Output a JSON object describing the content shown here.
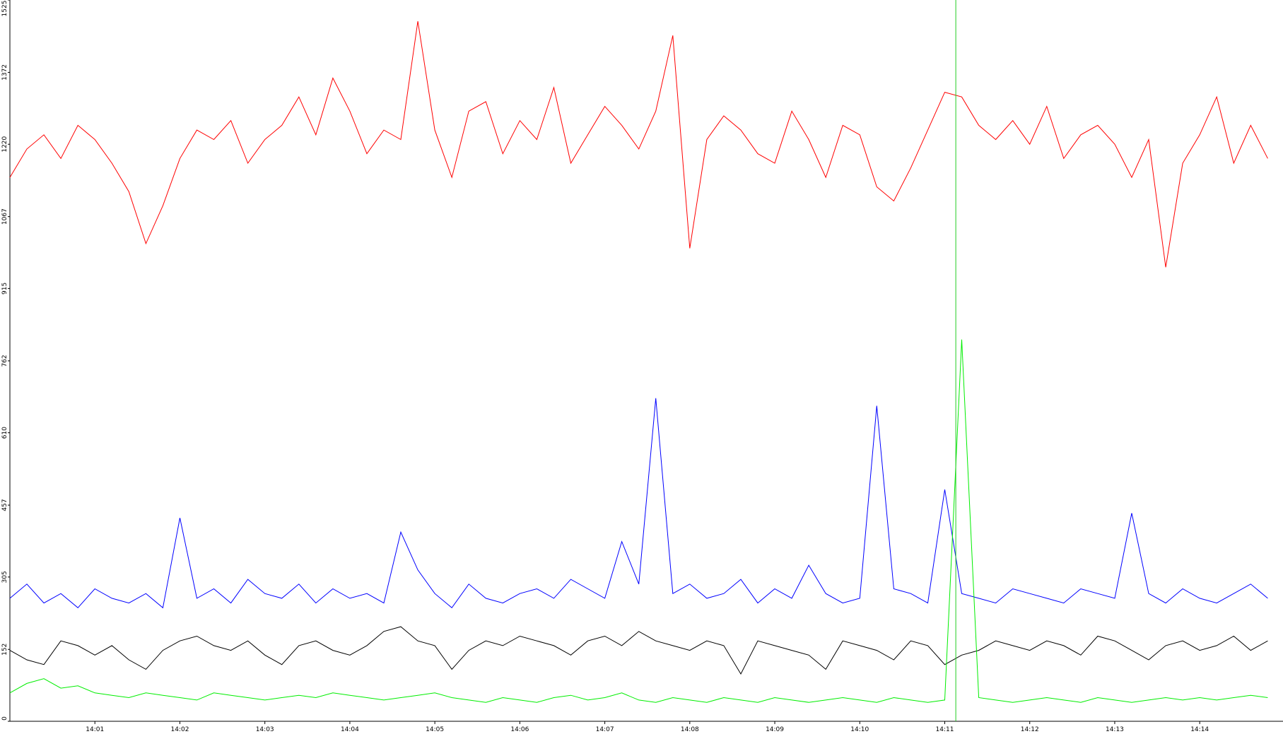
{
  "chart_data": {
    "type": "line",
    "x": [
      0,
      0.2,
      0.4,
      0.6,
      0.8,
      1,
      1.2,
      1.4,
      1.6,
      1.8,
      2,
      2.2,
      2.4,
      2.6,
      2.8,
      3,
      3.2,
      3.4,
      3.6,
      3.8,
      4,
      4.2,
      4.4,
      4.6,
      4.8,
      5,
      5.2,
      5.4,
      5.6,
      5.8,
      6,
      6.2,
      6.4,
      6.6,
      6.8,
      7,
      7.2,
      7.4,
      7.6,
      7.8,
      8,
      8.2,
      8.4,
      8.6,
      8.8,
      9,
      9.2,
      9.4,
      9.6,
      9.8,
      10,
      10.2,
      10.4,
      10.6,
      10.8,
      11,
      11.2,
      11.4,
      11.6,
      11.8,
      12,
      12.2,
      12.4,
      12.6,
      12.8,
      13,
      13.2,
      13.4,
      13.6,
      13.8,
      14,
      14.2,
      14.4,
      14.6,
      14.8
    ],
    "xlim": [
      0,
      14.98
    ],
    "xticks": [
      {
        "value": 1,
        "label": "14:01"
      },
      {
        "value": 2,
        "label": "14:02"
      },
      {
        "value": 3,
        "label": "14:03"
      },
      {
        "value": 4,
        "label": "14:04"
      },
      {
        "value": 5,
        "label": "14:05"
      },
      {
        "value": 6,
        "label": "14:06"
      },
      {
        "value": 7,
        "label": "14:07"
      },
      {
        "value": 8,
        "label": "14:08"
      },
      {
        "value": 9,
        "label": "14:09"
      },
      {
        "value": 10,
        "label": "14:10"
      },
      {
        "value": 11,
        "label": "14:11"
      },
      {
        "value": 12,
        "label": "14:12"
      },
      {
        "value": 13,
        "label": "14:13"
      },
      {
        "value": 14,
        "label": "14:14"
      }
    ],
    "ylim": [
      0,
      1525
    ],
    "yticks": [
      0,
      152,
      305,
      457,
      610,
      762,
      915,
      1067,
      1220,
      1372,
      1525
    ],
    "marker_x": 11.13,
    "marker_color": "#22cc22",
    "series": [
      {
        "color": "#ff0000",
        "values": [
          1150,
          1210,
          1240,
          1190,
          1260,
          1230,
          1180,
          1120,
          1010,
          1090,
          1190,
          1250,
          1230,
          1270,
          1180,
          1230,
          1260,
          1320,
          1240,
          1360,
          1290,
          1200,
          1250,
          1230,
          1480,
          1250,
          1150,
          1290,
          1310,
          1200,
          1270,
          1230,
          1340,
          1180,
          1240,
          1300,
          1260,
          1210,
          1290,
          1450,
          1000,
          1230,
          1280,
          1250,
          1200,
          1180,
          1290,
          1230,
          1150,
          1260,
          1240,
          1130,
          1100,
          1170,
          1250,
          1330,
          1320,
          1260,
          1230,
          1270,
          1220,
          1300,
          1190,
          1240,
          1260,
          1220,
          1150,
          1230,
          960,
          1180,
          1240,
          1320,
          1180,
          1260,
          1190
        ]
      },
      {
        "color": "#0000ff",
        "values": [
          260,
          290,
          250,
          270,
          240,
          280,
          260,
          250,
          270,
          240,
          430,
          260,
          280,
          250,
          300,
          270,
          260,
          290,
          250,
          280,
          260,
          270,
          250,
          400,
          320,
          270,
          240,
          290,
          260,
          250,
          270,
          280,
          260,
          300,
          280,
          260,
          380,
          290,
          683,
          270,
          290,
          260,
          270,
          300,
          250,
          280,
          260,
          330,
          270,
          250,
          260,
          667,
          280,
          270,
          250,
          490,
          270,
          260,
          250,
          280,
          270,
          260,
          250,
          280,
          270,
          260,
          440,
          270,
          250,
          280,
          260,
          250,
          270,
          290,
          260
        ]
      },
      {
        "color": "#000000",
        "values": [
          150,
          130,
          120,
          170,
          160,
          140,
          160,
          130,
          110,
          150,
          170,
          180,
          160,
          150,
          170,
          140,
          120,
          160,
          170,
          150,
          140,
          160,
          190,
          200,
          170,
          160,
          110,
          150,
          170,
          160,
          180,
          170,
          160,
          140,
          170,
          180,
          160,
          190,
          170,
          160,
          150,
          170,
          160,
          100,
          170,
          160,
          150,
          140,
          110,
          170,
          160,
          150,
          130,
          170,
          160,
          120,
          140,
          150,
          170,
          160,
          150,
          170,
          160,
          140,
          180,
          170,
          150,
          130,
          160,
          170,
          150,
          160,
          180,
          150,
          170
        ]
      },
      {
        "color": "#00ee00",
        "values": [
          60,
          80,
          90,
          70,
          75,
          60,
          55,
          50,
          60,
          55,
          50,
          45,
          60,
          55,
          50,
          45,
          50,
          55,
          50,
          60,
          55,
          50,
          45,
          50,
          55,
          60,
          50,
          45,
          40,
          50,
          45,
          40,
          50,
          55,
          45,
          50,
          60,
          45,
          40,
          50,
          45,
          40,
          50,
          45,
          40,
          50,
          45,
          40,
          45,
          50,
          45,
          40,
          50,
          45,
          40,
          45,
          807,
          50,
          45,
          40,
          45,
          50,
          45,
          40,
          50,
          45,
          40,
          45,
          50,
          45,
          50,
          45,
          50,
          55,
          50
        ]
      }
    ]
  }
}
